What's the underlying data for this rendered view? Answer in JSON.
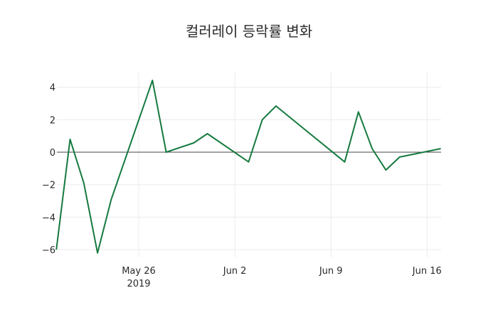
{
  "chart_data": {
    "type": "line",
    "title": "컬러레이 등락률 변화",
    "xlabel": "",
    "ylabel": "",
    "ylim": [
      -6.4,
      5.0
    ],
    "xlim": [
      "2019-05-20",
      "2019-06-17"
    ],
    "grid": true,
    "legend": null,
    "zero_line": true,
    "x_ticks": [
      {
        "date": "2019-05-26",
        "label": "May 26",
        "sublabel": "2019"
      },
      {
        "date": "2019-06-02",
        "label": "Jun 2",
        "sublabel": ""
      },
      {
        "date": "2019-06-09",
        "label": "Jun 9",
        "sublabel": ""
      },
      {
        "date": "2019-06-16",
        "label": "Jun 16",
        "sublabel": ""
      }
    ],
    "y_ticks": [
      4,
      2,
      0,
      -2,
      -4,
      -6
    ],
    "y_tick_labels": [
      "4",
      "2",
      "0",
      "−2",
      "−4",
      "−6"
    ],
    "series": [
      {
        "name": "등락률",
        "color": "#167a3f",
        "x": [
          "2019-05-20",
          "2019-05-21",
          "2019-05-22",
          "2019-05-23",
          "2019-05-24",
          "2019-05-27",
          "2019-05-28",
          "2019-05-29",
          "2019-05-30",
          "2019-05-31",
          "2019-06-03",
          "2019-06-04",
          "2019-06-05",
          "2019-06-07",
          "2019-06-10",
          "2019-06-11",
          "2019-06-12",
          "2019-06-13",
          "2019-06-14",
          "2019-06-17"
        ],
        "values": [
          -6.0,
          0.79,
          -1.9,
          -6.2,
          -2.9,
          4.42,
          0.0,
          0.29,
          0.57,
          1.14,
          -0.6,
          2.0,
          2.84,
          1.46,
          -0.6,
          2.48,
          0.22,
          -1.1,
          -0.3,
          0.22
        ]
      }
    ]
  }
}
